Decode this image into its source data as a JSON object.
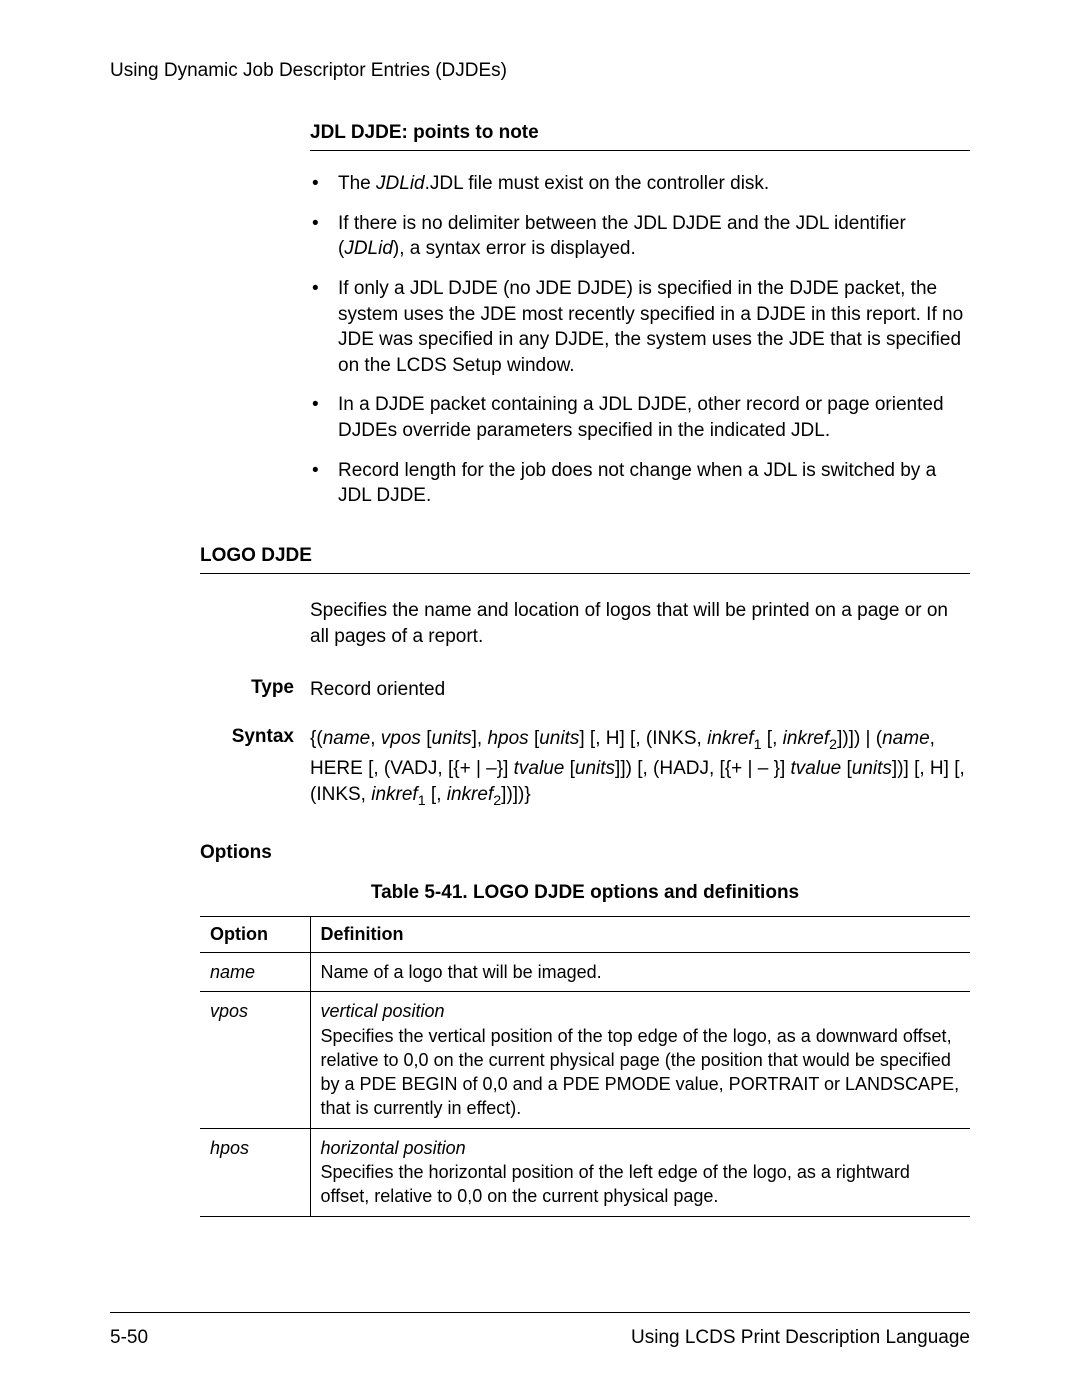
{
  "header": {
    "running": "Using Dynamic Job Descriptor Entries (DJDEs)"
  },
  "jdl_section": {
    "heading": "JDL DJDE: points to note",
    "bullets": {
      "b1_pre": "The ",
      "b1_em": "JDLid",
      "b1_post": ".JDL file must exist on the controller disk.",
      "b2_pre": "If there is no delimiter between the JDL DJDE and the JDL identifier (",
      "b2_em": "JDLid",
      "b2_post": "), a syntax error is displayed.",
      "b3": "If only a JDL DJDE (no JDE DJDE) is specified in the DJDE packet, the system uses the JDE most recently specified in a DJDE in this report. If no JDE was specified in any DJDE, the system uses the JDE that is specified on the LCDS Setup window.",
      "b4": "In a DJDE packet containing a JDL DJDE, other record or page oriented DJDEs override parameters specified in the indicated JDL.",
      "b5": "Record length for the job does not change when a JDL is switched by a JDL DJDE."
    }
  },
  "logo_section": {
    "heading": "LOGO DJDE",
    "intro": "Specifies the name and location of logos that will be printed on a page or on all pages of a report.",
    "type_label": "Type",
    "type_value": "Record oriented",
    "syntax_label": "Syntax",
    "syntax": {
      "t1": "{(",
      "name": "name",
      "t2": ", ",
      "vpos": "vpos",
      "t3": " [",
      "units1": "units",
      "t4": "], ",
      "hpos": "hpos",
      "t5": " [",
      "units2": "units",
      "t6": "] [, H] [, (INKS, ",
      "inkref1": "inkref",
      "sub1": "1",
      "t7": " [, ",
      "inkref2": "inkref",
      "sub2": "2",
      "t8": "])]) | (",
      "name2": "name",
      "t9": ", HERE [, (VADJ, [{+ | –}] ",
      "tvalue1": "tvalue",
      "t10": " [",
      "units3": "units",
      "t11": "]]) [, (HADJ, [{+ | – }] ",
      "tvalue2": "tvalue",
      "t12": " [",
      "units4": "units",
      "t13": "])] [, H] [, (INKS, ",
      "inkref3": "inkref",
      "sub3": "1",
      "t14": " [, ",
      "inkref4": "inkref",
      "sub4": "2",
      "t15": "])])}"
    },
    "options_heading": "Options",
    "table_caption": "Table 5-41. LOGO DJDE options and definitions",
    "table": {
      "col_option": "Option",
      "col_definition": "Definition",
      "r1_opt": "name",
      "r1_def": "Name of a logo that will be imaged.",
      "r2_opt": "vpos",
      "r2_em": "vertical position",
      "r2_def": "Specifies the vertical position of the top edge of the logo, as a downward offset, relative to 0,0 on the current physical page (the position that would be specified by a PDE BEGIN of 0,0 and a PDE PMODE value, PORTRAIT or LANDSCAPE, that is currently in effect).",
      "r3_opt": "hpos",
      "r3_em": "horizontal position",
      "r3_def": "Specifies the horizontal position of the left edge of the logo, as a rightward offset, relative to 0,0 on the current physical page."
    }
  },
  "footer": {
    "page_num": "5-50",
    "title": "Using LCDS Print Description Language"
  }
}
